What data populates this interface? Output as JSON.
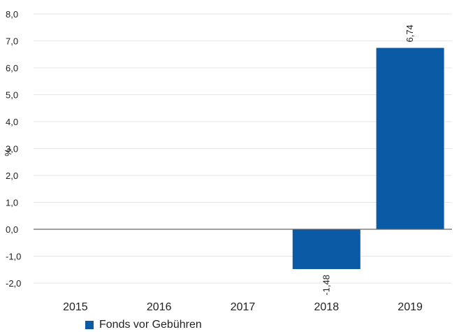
{
  "chart_data": {
    "type": "bar",
    "categories": [
      "2015",
      "2016",
      "2017",
      "2018",
      "2019"
    ],
    "series": [
      {
        "name": "Fonds vor Gebühren",
        "values": [
          null,
          null,
          null,
          -1.48,
          6.74
        ],
        "color": "#0a5aa5"
      }
    ],
    "data_labels": [
      "",
      "",
      "",
      "-1,48",
      "6,74"
    ],
    "ylabel": "%",
    "ylim": [
      -2.0,
      8.0
    ],
    "yticks": [
      -2.0,
      -1.0,
      0.0,
      1.0,
      2.0,
      3.0,
      4.0,
      5.0,
      6.0,
      7.0,
      8.0
    ],
    "ytick_labels": [
      "-2,0",
      "-1,0",
      "0,0",
      "1,0",
      "2,0",
      "3,0",
      "4,0",
      "5,0",
      "6,0",
      "7,0",
      "8,0"
    ],
    "grid": true,
    "legend_position": "bottom-left"
  }
}
